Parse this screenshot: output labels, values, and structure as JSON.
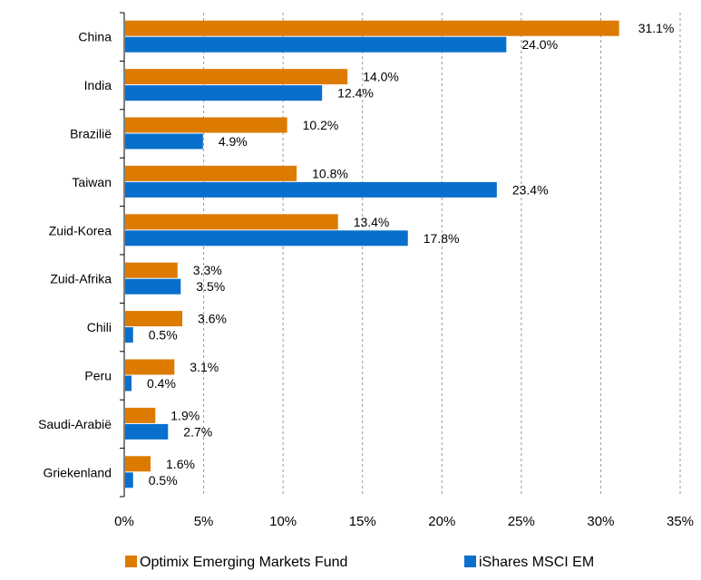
{
  "chart_data": {
    "type": "bar",
    "orientation": "horizontal",
    "title": "",
    "xlabel": "",
    "ylabel": "",
    "categories": [
      "China",
      "India",
      "Braziliё",
      "Taiwan",
      "Zuid-Korea",
      "Zuid-Afrika",
      "Chili",
      "Peru",
      "Saudi-Arabiё",
      "Griekenland"
    ],
    "series": [
      {
        "name": "Optimix Emerging Markets Fund",
        "color": "#dd7b00",
        "values": [
          31.1,
          14.0,
          10.2,
          10.8,
          13.4,
          3.3,
          3.6,
          3.1,
          1.9,
          1.6
        ],
        "labels": [
          "31.1%",
          "14.0%",
          "10.2%",
          "10.8%",
          "13.4%",
          "3.3%",
          "3.6%",
          "3.1%",
          "1.9%",
          "1.6%"
        ]
      },
      {
        "name": "iShares MSCI EM",
        "color": "#0870cc",
        "values": [
          24.0,
          12.4,
          4.9,
          23.4,
          17.8,
          3.5,
          0.5,
          0.4,
          2.7,
          0.5
        ],
        "labels": [
          "24.0%",
          "12.4%",
          "4.9%",
          "23.4%",
          "17.8%",
          "3.5%",
          "0.5%",
          "0.4%",
          "2.7%",
          "0.5%"
        ]
      }
    ],
    "xlim": [
      0,
      35
    ],
    "xticks": [
      0,
      5,
      10,
      15,
      20,
      25,
      30,
      35
    ],
    "xtick_labels": [
      "0%",
      "5%",
      "10%",
      "15%",
      "20%",
      "25%",
      "30%",
      "35%"
    ],
    "grid": "vertical dashed",
    "legend_position": "bottom"
  }
}
